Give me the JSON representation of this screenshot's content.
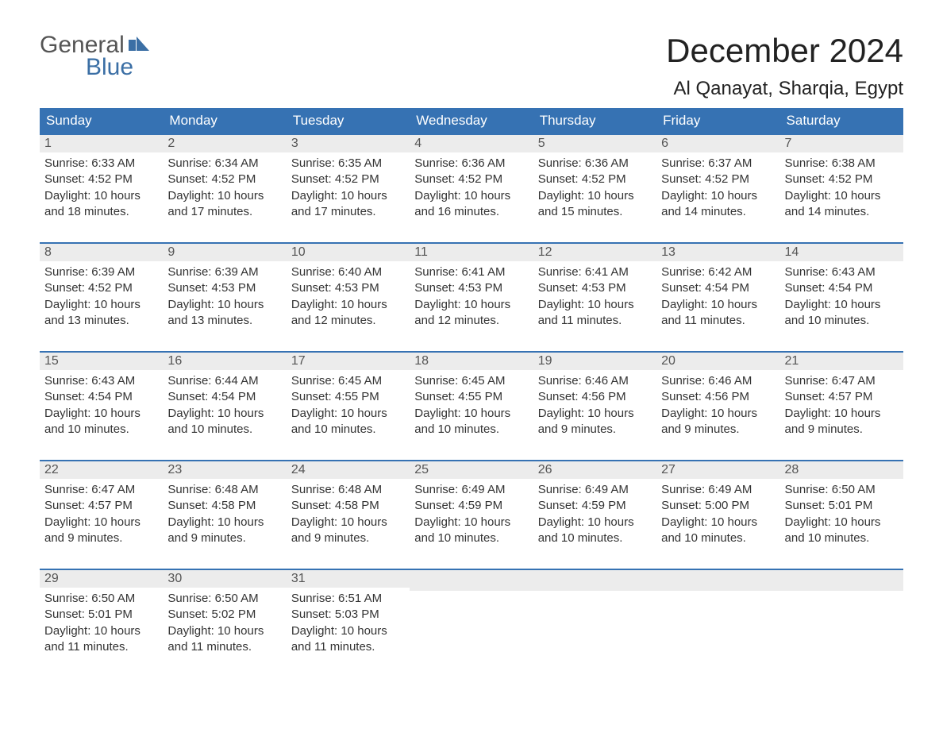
{
  "logo": {
    "line1": "General",
    "line2": "Blue",
    "accent_color": "#3b6fa5"
  },
  "title": {
    "month": "December 2024",
    "location": "Al Qanayat, Sharqia, Egypt"
  },
  "style": {
    "header_bg": "#3672b3",
    "header_text": "#ffffff",
    "row_rule": "#3672b3",
    "daynum_bg": "#ececec",
    "text_color": "#333333",
    "page_bg": "#ffffff",
    "font_family": "Arial, Helvetica, sans-serif",
    "title_fontsize_pt": 32,
    "location_fontsize_pt": 18,
    "header_fontsize_pt": 13,
    "body_fontsize_pt": 11
  },
  "columns": [
    "Sunday",
    "Monday",
    "Tuesday",
    "Wednesday",
    "Thursday",
    "Friday",
    "Saturday"
  ],
  "weeks": [
    [
      {
        "n": "1",
        "sunrise": "6:33 AM",
        "sunset": "4:52 PM",
        "daylight": "10 hours and 18 minutes."
      },
      {
        "n": "2",
        "sunrise": "6:34 AM",
        "sunset": "4:52 PM",
        "daylight": "10 hours and 17 minutes."
      },
      {
        "n": "3",
        "sunrise": "6:35 AM",
        "sunset": "4:52 PM",
        "daylight": "10 hours and 17 minutes."
      },
      {
        "n": "4",
        "sunrise": "6:36 AM",
        "sunset": "4:52 PM",
        "daylight": "10 hours and 16 minutes."
      },
      {
        "n": "5",
        "sunrise": "6:36 AM",
        "sunset": "4:52 PM",
        "daylight": "10 hours and 15 minutes."
      },
      {
        "n": "6",
        "sunrise": "6:37 AM",
        "sunset": "4:52 PM",
        "daylight": "10 hours and 14 minutes."
      },
      {
        "n": "7",
        "sunrise": "6:38 AM",
        "sunset": "4:52 PM",
        "daylight": "10 hours and 14 minutes."
      }
    ],
    [
      {
        "n": "8",
        "sunrise": "6:39 AM",
        "sunset": "4:52 PM",
        "daylight": "10 hours and 13 minutes."
      },
      {
        "n": "9",
        "sunrise": "6:39 AM",
        "sunset": "4:53 PM",
        "daylight": "10 hours and 13 minutes."
      },
      {
        "n": "10",
        "sunrise": "6:40 AM",
        "sunset": "4:53 PM",
        "daylight": "10 hours and 12 minutes."
      },
      {
        "n": "11",
        "sunrise": "6:41 AM",
        "sunset": "4:53 PM",
        "daylight": "10 hours and 12 minutes."
      },
      {
        "n": "12",
        "sunrise": "6:41 AM",
        "sunset": "4:53 PM",
        "daylight": "10 hours and 11 minutes."
      },
      {
        "n": "13",
        "sunrise": "6:42 AM",
        "sunset": "4:54 PM",
        "daylight": "10 hours and 11 minutes."
      },
      {
        "n": "14",
        "sunrise": "6:43 AM",
        "sunset": "4:54 PM",
        "daylight": "10 hours and 10 minutes."
      }
    ],
    [
      {
        "n": "15",
        "sunrise": "6:43 AM",
        "sunset": "4:54 PM",
        "daylight": "10 hours and 10 minutes."
      },
      {
        "n": "16",
        "sunrise": "6:44 AM",
        "sunset": "4:54 PM",
        "daylight": "10 hours and 10 minutes."
      },
      {
        "n": "17",
        "sunrise": "6:45 AM",
        "sunset": "4:55 PM",
        "daylight": "10 hours and 10 minutes."
      },
      {
        "n": "18",
        "sunrise": "6:45 AM",
        "sunset": "4:55 PM",
        "daylight": "10 hours and 10 minutes."
      },
      {
        "n": "19",
        "sunrise": "6:46 AM",
        "sunset": "4:56 PM",
        "daylight": "10 hours and 9 minutes."
      },
      {
        "n": "20",
        "sunrise": "6:46 AM",
        "sunset": "4:56 PM",
        "daylight": "10 hours and 9 minutes."
      },
      {
        "n": "21",
        "sunrise": "6:47 AM",
        "sunset": "4:57 PM",
        "daylight": "10 hours and 9 minutes."
      }
    ],
    [
      {
        "n": "22",
        "sunrise": "6:47 AM",
        "sunset": "4:57 PM",
        "daylight": "10 hours and 9 minutes."
      },
      {
        "n": "23",
        "sunrise": "6:48 AM",
        "sunset": "4:58 PM",
        "daylight": "10 hours and 9 minutes."
      },
      {
        "n": "24",
        "sunrise": "6:48 AM",
        "sunset": "4:58 PM",
        "daylight": "10 hours and 9 minutes."
      },
      {
        "n": "25",
        "sunrise": "6:49 AM",
        "sunset": "4:59 PM",
        "daylight": "10 hours and 10 minutes."
      },
      {
        "n": "26",
        "sunrise": "6:49 AM",
        "sunset": "4:59 PM",
        "daylight": "10 hours and 10 minutes."
      },
      {
        "n": "27",
        "sunrise": "6:49 AM",
        "sunset": "5:00 PM",
        "daylight": "10 hours and 10 minutes."
      },
      {
        "n": "28",
        "sunrise": "6:50 AM",
        "sunset": "5:01 PM",
        "daylight": "10 hours and 10 minutes."
      }
    ],
    [
      {
        "n": "29",
        "sunrise": "6:50 AM",
        "sunset": "5:01 PM",
        "daylight": "10 hours and 11 minutes."
      },
      {
        "n": "30",
        "sunrise": "6:50 AM",
        "sunset": "5:02 PM",
        "daylight": "10 hours and 11 minutes."
      },
      {
        "n": "31",
        "sunrise": "6:51 AM",
        "sunset": "5:03 PM",
        "daylight": "10 hours and 11 minutes."
      },
      null,
      null,
      null,
      null
    ]
  ],
  "labels": {
    "sunrise": "Sunrise:",
    "sunset": "Sunset:",
    "daylight": "Daylight:"
  }
}
